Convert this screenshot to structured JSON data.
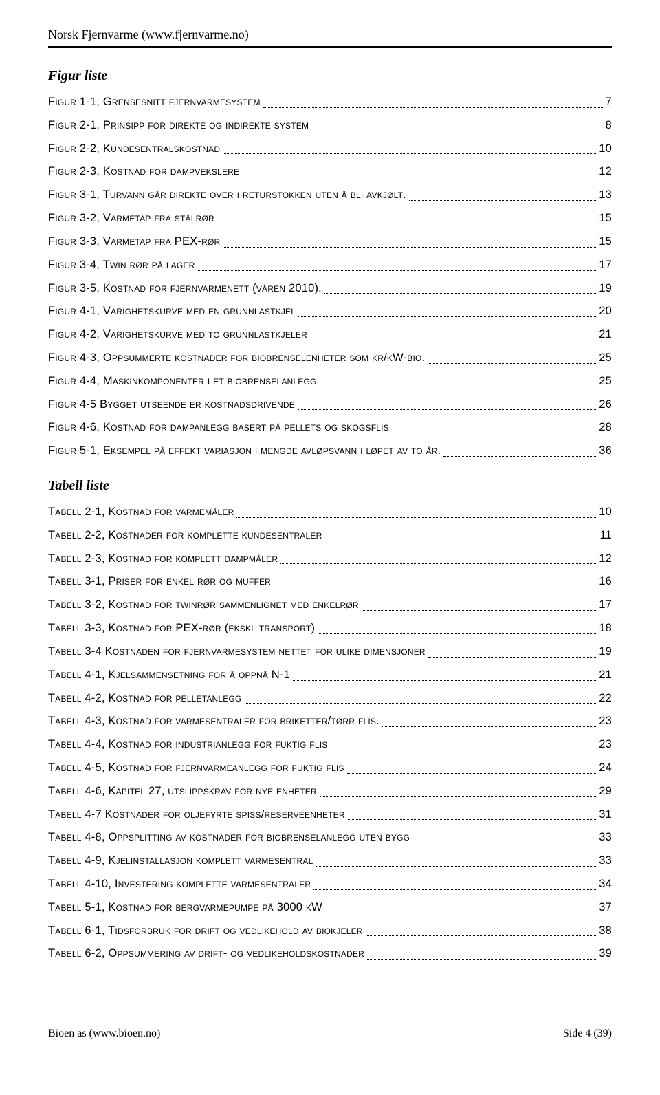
{
  "header": "Norsk Fjernvarme (www.fjernvarme.no)",
  "figur_title": "Figur liste",
  "figur_items": [
    {
      "label": "Figur 1-1, Grensesnitt fjernvarmesystem",
      "page": "7"
    },
    {
      "label": "Figur 2-1, Prinsipp for direkte og indirekte system",
      "page": "8"
    },
    {
      "label": "Figur 2-2, Kundesentralskostnad",
      "page": "10"
    },
    {
      "label": "Figur 2-3, Kostnad for dampvekslere",
      "page": "12"
    },
    {
      "label": "Figur 3-1, Turvann går direkte over i returstokken uten å bli avkjølt.",
      "page": "13"
    },
    {
      "label": "Figur 3-2, Varmetap fra stålrør",
      "page": "15"
    },
    {
      "label": "Figur 3-3, Varmetap fra PEX-rør",
      "page": "15"
    },
    {
      "label": "Figur 3-4, Twin rør på lager",
      "page": "17"
    },
    {
      "label": "Figur 3-5, Kostnad for fjernvarmenett (våren 2010).",
      "page": "19"
    },
    {
      "label": "Figur 4-1, Varighetskurve med en grunnlastkjel",
      "page": "20"
    },
    {
      "label": "Figur 4-2, Varighetskurve med to grunnlastkjeler",
      "page": "21"
    },
    {
      "label": "Figur 4-3, Oppsummerte kostnader for biobrenselenheter som kr/kW-bio.",
      "page": "25"
    },
    {
      "label": "Figur 4-4, Maskinkomponenter i et biobrenselanlegg",
      "page": "25"
    },
    {
      "label": "Figur 4-5 Bygget utseende er kostnadsdrivende",
      "page": "26"
    },
    {
      "label": "Figur 4-6, Kostnad for dampanlegg basert på pellets og skogsflis",
      "page": "28"
    },
    {
      "label": "Figur 5-1, Eksempel på effekt variasjon i mengde avløpsvann i løpet av to år.",
      "page": "36"
    }
  ],
  "tabell_title": "Tabell liste",
  "tabell_items": [
    {
      "label": "Tabell 2-1, Kostnad for varmemåler",
      "page": "10"
    },
    {
      "label": "Tabell 2-2, Kostnader for komplette kundesentraler",
      "page": "11"
    },
    {
      "label": "Tabell 2-3, Kostnad for komplett dampmåler",
      "page": "12"
    },
    {
      "label": "Tabell 3-1, Priser for enkel rør og muffer",
      "page": "16"
    },
    {
      "label": "Tabell 3-2, Kostnad for twinrør sammenlignet med enkelrør",
      "page": "17"
    },
    {
      "label": "Tabell 3-3, Kostnad for PEX-rør (ekskl transport)",
      "page": "18"
    },
    {
      "label": "Tabell 3-4 Kostnaden for fjernvarmesystem nettet for ulike dimensjoner",
      "page": "19"
    },
    {
      "label": "Tabell 4-1, Kjelsammensetning for å oppnå N-1",
      "page": "21"
    },
    {
      "label": "Tabell 4-2, Kostnad for pelletanlegg",
      "page": "22"
    },
    {
      "label": "Tabell 4-3, Kostnad for varmesentraler for briketter/tørr flis.",
      "page": "23"
    },
    {
      "label": "Tabell 4-4, Kostnad for industrianlegg for fuktig flis",
      "page": "23"
    },
    {
      "label": "Tabell 4-5, Kostnad for fjernvarmeanlegg for fuktig flis",
      "page": "24"
    },
    {
      "label": "Tabell 4-6, Kapitel 27, utslippskrav for nye enheter",
      "page": "29"
    },
    {
      "label": "Tabell 4-7 Kostnader for oljefyrte spiss/reserveenheter",
      "page": "31"
    },
    {
      "label": "Tabell 4-8, Oppsplitting av kostnader for biobrenselanlegg uten bygg",
      "page": "33"
    },
    {
      "label": "Tabell 4-9, Kjelinstallasjon komplett varmesentral",
      "page": "33"
    },
    {
      "label": "Tabell 4-10, Investering komplette varmesentraler",
      "page": "34"
    },
    {
      "label": "Tabell 5-1, Kostnad for bergvarmepumpe på 3000 kW",
      "page": "37"
    },
    {
      "label": "Tabell 6-1, Tidsforbruk for drift og vedlikehold av biokjeler",
      "page": "38"
    },
    {
      "label": "Tabell 6-2, Oppsummering av drift- og vedlikeholdskostnader",
      "page": "39"
    }
  ],
  "footer_left": "Bioen as (www.bioen.no)",
  "footer_right": "Side 4 (39)"
}
